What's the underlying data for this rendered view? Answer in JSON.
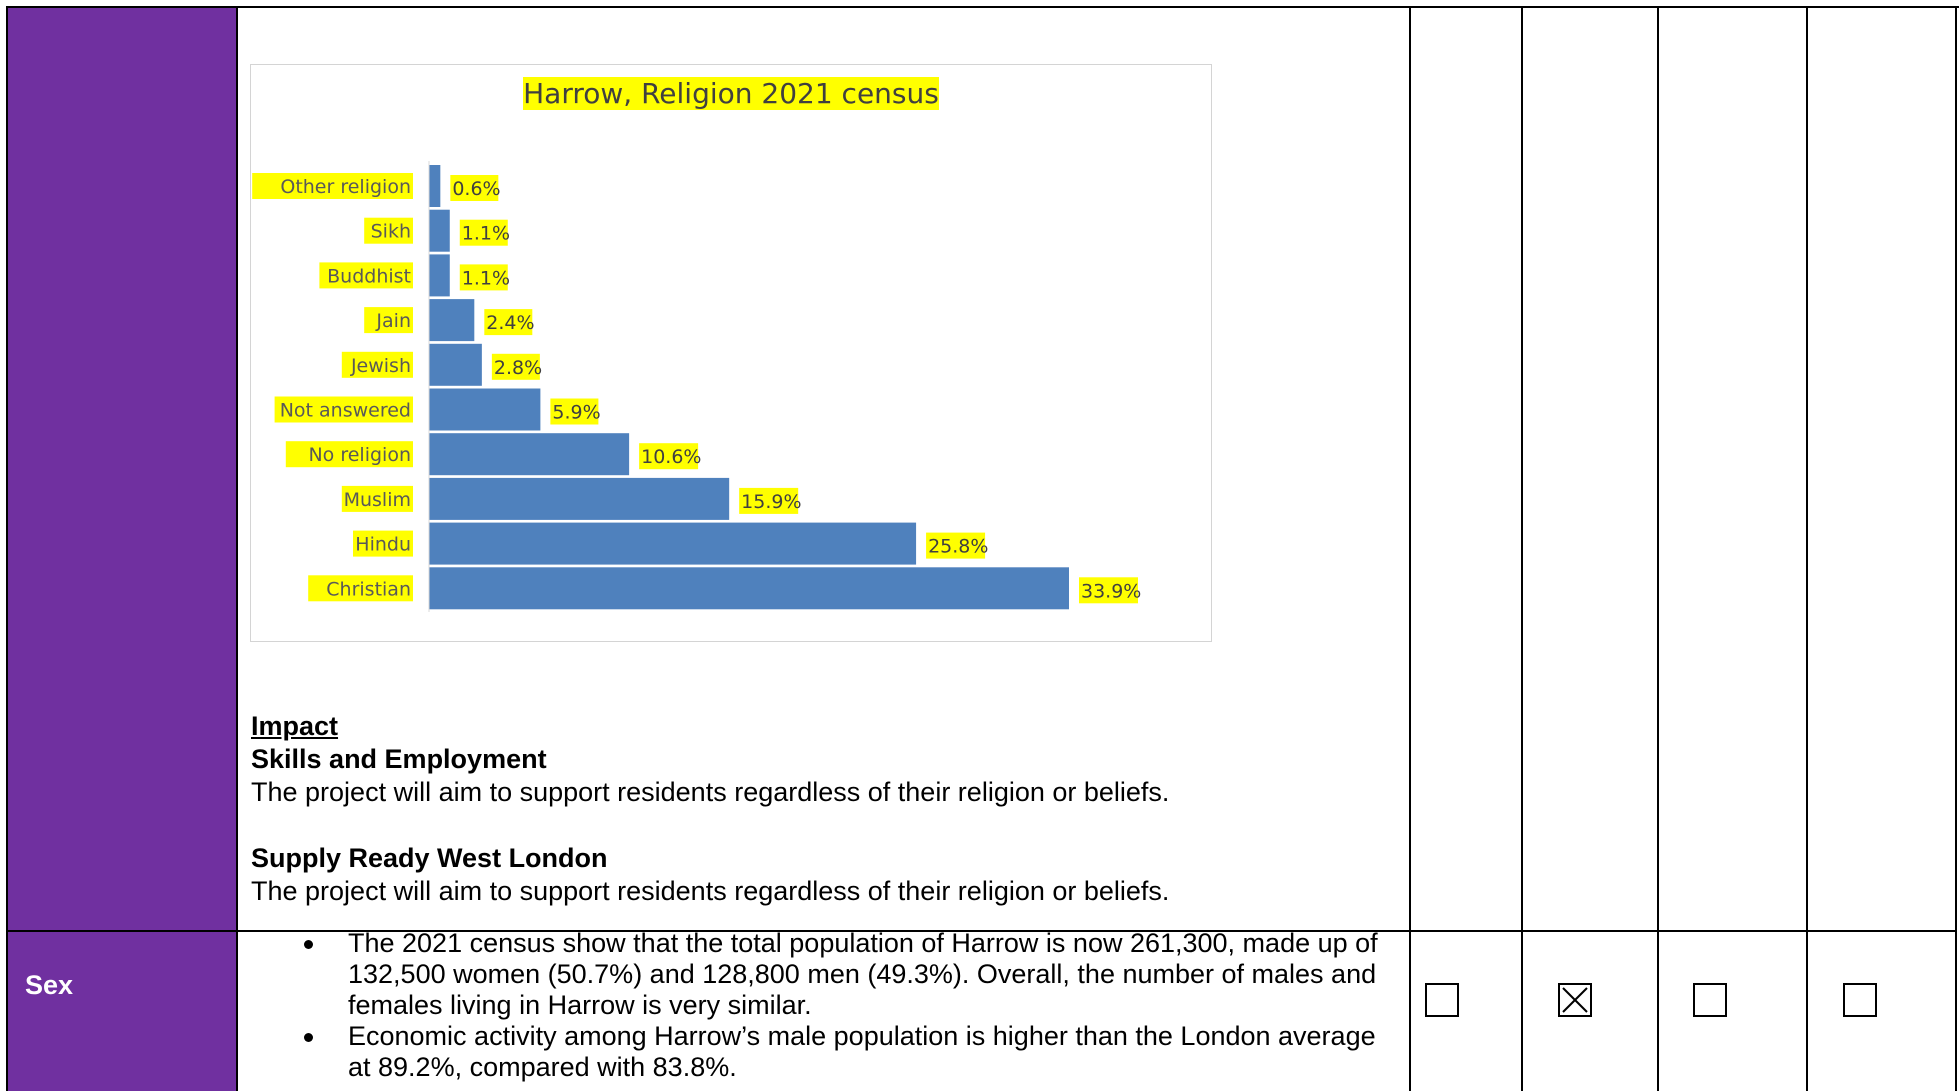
{
  "chart_data": {
    "type": "bar",
    "orientation": "horizontal",
    "title": "Harrow, Religion 2021 census",
    "categories": [
      "Other religion",
      "Sikh",
      "Buddhist",
      "Jain",
      "Jewish",
      "Not answered",
      "No religion",
      "Muslim",
      "Hindu",
      "Christian"
    ],
    "values": [
      0.6,
      1.1,
      1.1,
      2.4,
      2.8,
      5.9,
      10.6,
      15.9,
      25.8,
      33.9
    ],
    "value_labels": [
      "0.6%",
      "1.1%",
      "1.1%",
      "2.4%",
      "2.8%",
      "5.9%",
      "10.6%",
      "15.9%",
      "25.8%",
      "33.9%"
    ],
    "xlim": [
      0,
      33.9
    ],
    "bar_color": "#4f81bd",
    "highlight_color": "#ffff00",
    "grid": false,
    "legend": "none"
  },
  "impact": {
    "heading": "Impact",
    "skills_title": "Skills and Employment",
    "skills_text": "The project will aim to support residents regardless of their religion or beliefs.",
    "supply_title": "Supply Ready West London",
    "supply_text": "The project will aim to support residents regardless of their religion or beliefs."
  },
  "sex_row": {
    "label": "Sex",
    "bullets": [
      "The 2021 census show that the total population of Harrow is now 261,300, made up of 132,500 women (50.7%) and 128,800 men (49.3%). Overall, the number of males and females living in Harrow is very similar.",
      "Economic activity among Harrow’s male population is higher than the London average at 89.2%, compared with 83.8%."
    ],
    "checkboxes": [
      {
        "checked": false,
        "glyph": "☐"
      },
      {
        "checked": true,
        "glyph": "☒"
      },
      {
        "checked": false,
        "glyph": "☐"
      },
      {
        "checked": false,
        "glyph": "☐"
      }
    ]
  },
  "colors": {
    "label_column": "#7030a0",
    "label_text": "#ffffff"
  }
}
